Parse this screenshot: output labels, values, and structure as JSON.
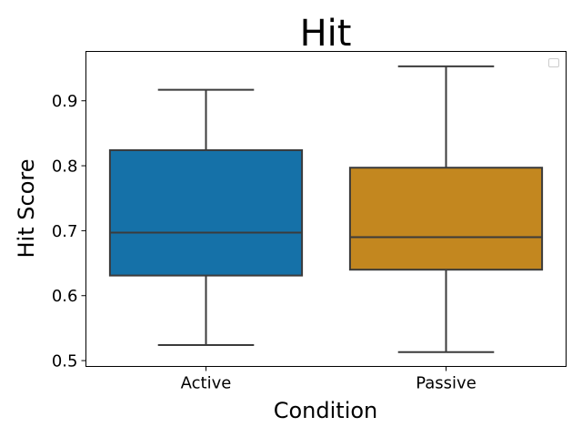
{
  "chart_data": {
    "type": "box",
    "title": "Hit",
    "xlabel": "Condition",
    "ylabel": "Hit Score",
    "categories": [
      "Active",
      "Passive"
    ],
    "series": [
      {
        "category": "Active",
        "color": "#1571a8",
        "whisker_low": 0.524,
        "q1": 0.631,
        "median": 0.697,
        "q3": 0.824,
        "whisker_high": 0.917
      },
      {
        "category": "Passive",
        "color": "#c3871f",
        "whisker_low": 0.513,
        "q1": 0.64,
        "median": 0.69,
        "q3": 0.797,
        "whisker_high": 0.953
      }
    ],
    "yticks": [
      0.5,
      0.6,
      0.7,
      0.8,
      0.9
    ],
    "ytick_labels": [
      "0.5",
      "0.6",
      "0.7",
      "0.8",
      "0.9"
    ],
    "ylim": [
      0.491,
      0.976
    ],
    "grid": false,
    "legend": "top-right (empty)"
  }
}
